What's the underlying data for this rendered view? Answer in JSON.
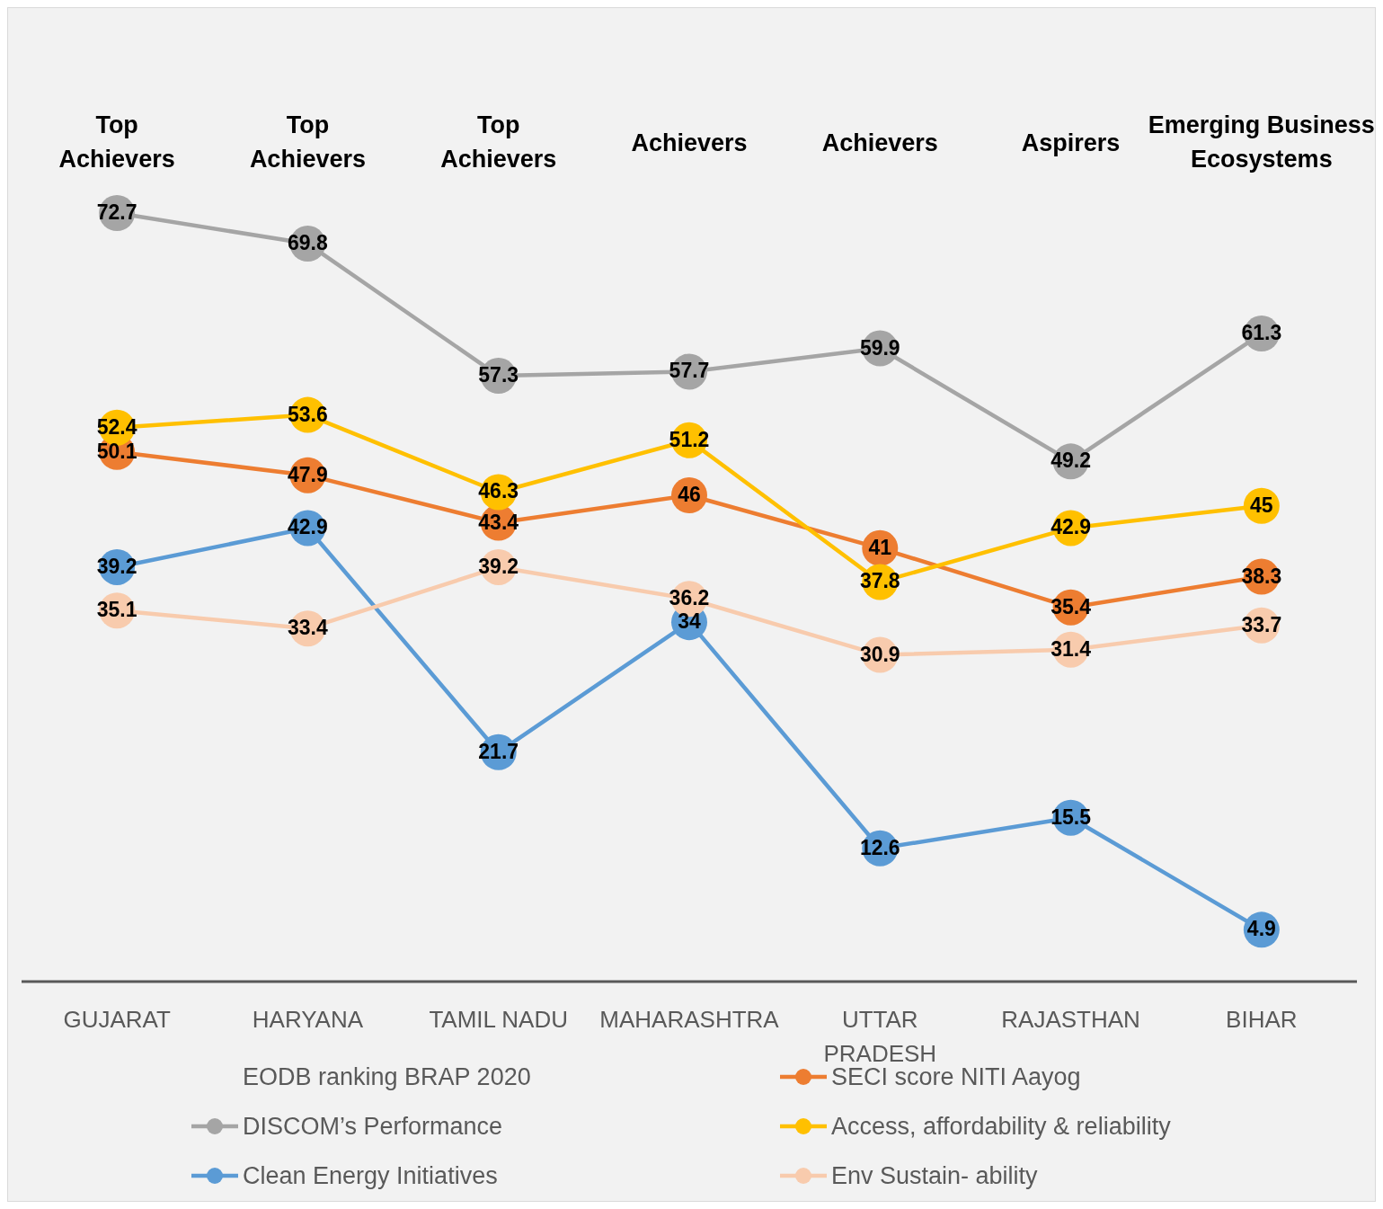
{
  "chart_data": {
    "type": "line",
    "categories": [
      "GUJARAT",
      "HARYANA",
      "TAMIL NADU",
      "MAHARASHTRA",
      "UTTAR PRADESH",
      "RAJASTHAN",
      "BIHAR"
    ],
    "annotations": [
      "Top\nAchievers",
      "Top\nAchievers",
      "Top\nAchievers",
      "Achievers",
      "Achievers",
      "Aspirers",
      "Emerging Business\nEcosystems"
    ],
    "ylim": [
      0,
      92
    ],
    "legend_title": "EODB ranking BRAP 2020",
    "legend": "bottom",
    "marker": "circle",
    "data_labels": true,
    "grid": false,
    "series": [
      {
        "name": "SECI score NITI Aayog",
        "color": "#ed7d31",
        "values": [
          50.1,
          47.9,
          43.4,
          46,
          41,
          35.4,
          38.3
        ]
      },
      {
        "name": "DISCOM’s Performance",
        "color": "#a5a5a5",
        "values": [
          72.7,
          69.8,
          57.3,
          57.7,
          59.9,
          49.2,
          61.3
        ]
      },
      {
        "name": "Access, affordability & reliability",
        "color": "#ffc000",
        "values": [
          52.4,
          53.6,
          46.3,
          51.2,
          37.8,
          42.9,
          45
        ]
      },
      {
        "name": "Clean Energy Initiatives",
        "color": "#5b9bd5",
        "values": [
          39.2,
          42.9,
          21.7,
          34,
          12.6,
          15.5,
          4.9
        ]
      },
      {
        "name": "Env Sustain- ability",
        "color": "#f8cbad",
        "values": [
          35.1,
          33.4,
          39.2,
          36.2,
          30.9,
          31.4,
          33.7
        ]
      }
    ]
  }
}
